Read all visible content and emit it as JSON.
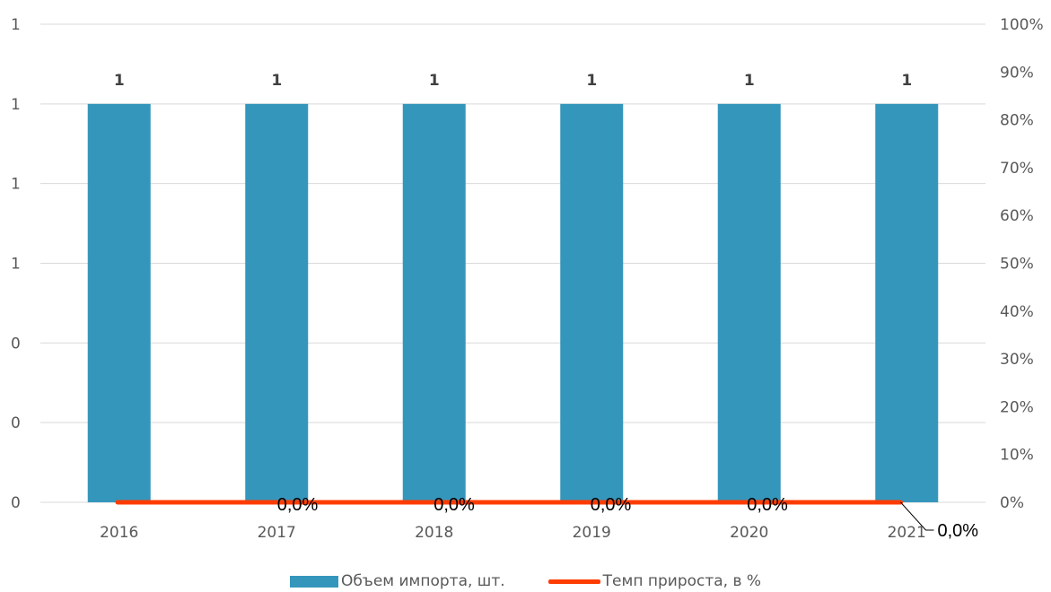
{
  "chart_data": {
    "type": "bar",
    "categories": [
      "2016",
      "2017",
      "2018",
      "2019",
      "2020",
      "2021"
    ],
    "series": [
      {
        "name": "Объем импорта, шт.",
        "type": "bar",
        "axis": "left",
        "color": "#3596BC",
        "values": [
          1,
          1,
          1,
          1,
          1,
          1
        ],
        "data_labels": [
          "1",
          "1",
          "1",
          "1",
          "1",
          "1"
        ]
      },
      {
        "name": "Темп прироста, в %",
        "type": "line",
        "axis": "right",
        "color": "#FF3C00",
        "values": [
          0,
          0,
          0,
          0,
          0,
          0
        ],
        "data_labels": [
          "",
          "0,0%",
          "0,0%",
          "0,0%",
          "0,0%",
          "0,0%"
        ]
      }
    ],
    "left_axis": {
      "ylim": [
        0,
        1.2
      ],
      "ticks": [
        0,
        0.2,
        0.4,
        0.6,
        0.8,
        1.0,
        1.2
      ],
      "tick_labels": [
        "0",
        "0",
        "0",
        "1",
        "1",
        "1",
        "1"
      ]
    },
    "right_axis": {
      "ylim": [
        0,
        100
      ],
      "ticks": [
        0,
        10,
        20,
        30,
        40,
        50,
        60,
        70,
        80,
        90,
        100
      ],
      "tick_labels": [
        "0%",
        "10%",
        "20%",
        "30%",
        "40%",
        "50%",
        "60%",
        "70%",
        "80%",
        "90%",
        "100%"
      ]
    },
    "grid": true,
    "legend_position": "bottom"
  }
}
